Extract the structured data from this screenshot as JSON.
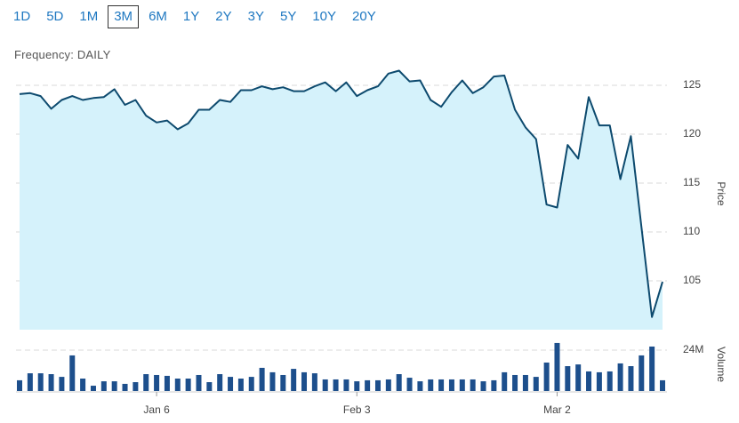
{
  "range_buttons": {
    "labels": [
      "1D",
      "5D",
      "1M",
      "3M",
      "6M",
      "1Y",
      "2Y",
      "3Y",
      "5Y",
      "10Y",
      "20Y"
    ],
    "selected": "3M"
  },
  "frequency_label": "Frequency: DAILY",
  "chart_data": [
    {
      "type": "area",
      "y_label": "Price",
      "color": "#0d4a6e",
      "fill": "#d5f2fb",
      "values": [
        124.1,
        124.2,
        123.9,
        122.6,
        123.5,
        123.9,
        123.5,
        123.7,
        123.8,
        124.6,
        123.0,
        123.5,
        121.9,
        121.2,
        121.4,
        120.5,
        121.1,
        122.5,
        122.5,
        123.5,
        123.3,
        124.5,
        124.5,
        124.9,
        124.6,
        124.8,
        124.4,
        124.4,
        124.9,
        125.3,
        124.4,
        125.3,
        123.9,
        124.5,
        124.9,
        126.2,
        126.5,
        125.4,
        125.5,
        123.5,
        122.8,
        124.3,
        125.5,
        124.2,
        124.8,
        125.9,
        126.0,
        122.5,
        120.7,
        119.5,
        112.8,
        112.5,
        118.9,
        117.5,
        123.8,
        120.9,
        120.9,
        115.4,
        119.8,
        110.5,
        101.3,
        104.9
      ],
      "ylim": [
        100,
        127
      ],
      "yticks": [
        105,
        110,
        115,
        120,
        125
      ],
      "grid": true
    },
    {
      "type": "bar",
      "y_label": "Volume",
      "color": "#1d4f8c",
      "categories": [
        null,
        null,
        null,
        null,
        null,
        null,
        null,
        null,
        null,
        null,
        null,
        null,
        null,
        "Jan 6",
        null,
        null,
        null,
        null,
        null,
        null,
        null,
        null,
        null,
        null,
        null,
        null,
        null,
        null,
        null,
        null,
        null,
        null,
        "Feb 3",
        null,
        null,
        null,
        null,
        null,
        null,
        null,
        null,
        null,
        null,
        null,
        null,
        null,
        null,
        null,
        null,
        null,
        null,
        "Mar 2",
        null,
        null,
        null,
        null,
        null,
        null,
        null,
        null,
        null,
        null
      ],
      "values": [
        6300000,
        10400000,
        10400000,
        9900000,
        8300000,
        20900000,
        7300000,
        3100000,
        5700000,
        5700000,
        4200000,
        5200000,
        9900000,
        9400000,
        8900000,
        7300000,
        7300000,
        9400000,
        5200000,
        9900000,
        8300000,
        7300000,
        8300000,
        13600000,
        11000000,
        9400000,
        13000000,
        11000000,
        10400000,
        6800000,
        6800000,
        6800000,
        5700000,
        6300000,
        6300000,
        6800000,
        9900000,
        7800000,
        5700000,
        6800000,
        6800000,
        6800000,
        6800000,
        6800000,
        5700000,
        6300000,
        11000000,
        9400000,
        9400000,
        8300000,
        16700000,
        28200000,
        14600000,
        15600000,
        11500000,
        11000000,
        11500000,
        16200000,
        14600000,
        20900000,
        26100000,
        6300000
      ],
      "ylim": [
        0,
        31300000
      ],
      "yticks": [
        {
          "value": 24000000,
          "label": "24M"
        }
      ],
      "grid": true
    }
  ]
}
